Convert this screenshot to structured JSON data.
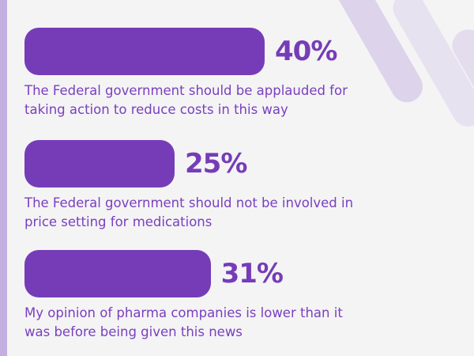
{
  "chart_data": {
    "type": "bar",
    "orientation": "horizontal",
    "unit": "%",
    "categories": [
      "The Federal government should be applauded for taking action to reduce costs in this way",
      "The Federal government should not be involved in price setting for medications",
      "My opinion of pharma companies is lower than it was before being given this news"
    ],
    "values": [
      40,
      25,
      31
    ],
    "labels": [
      "40%",
      "25%",
      "31%"
    ],
    "colors": {
      "bar": "#763cb8",
      "text": "#7a3fc0",
      "background": "#f4f4f4",
      "accent_stripe": "#c4b0e0"
    }
  }
}
